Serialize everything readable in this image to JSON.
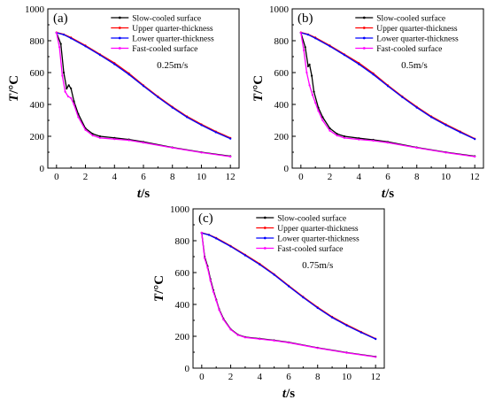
{
  "chart_data": [
    {
      "type": "line",
      "panel_label": "(a)",
      "annotation": "0.25m/s",
      "xlabel": {
        "var": "t",
        "unit": "/s"
      },
      "ylabel": {
        "var": "T",
        "unit": "/°C"
      },
      "xlim": [
        -0.6,
        12.6
      ],
      "ylim": [
        0,
        1000
      ],
      "xticks": [
        0,
        2,
        4,
        6,
        8,
        10,
        12
      ],
      "yticks": [
        0,
        200,
        400,
        600,
        800,
        1000
      ],
      "xtick_labels": [
        "0",
        "2",
        "4",
        "6",
        "8",
        "10",
        "12"
      ],
      "ytick_labels": [
        "0",
        "200",
        "400",
        "600",
        "800",
        "1000"
      ],
      "legend_position": "top-right",
      "series": [
        {
          "name": "Slow-cooled surface",
          "color": "#000000",
          "x": [
            0,
            0.3,
            0.5,
            0.7,
            0.85,
            1.0,
            1.2,
            1.5,
            2,
            2.5,
            3,
            4,
            5,
            6,
            8,
            10,
            12
          ],
          "y": [
            850,
            780,
            600,
            500,
            520,
            500,
            420,
            340,
            250,
            215,
            200,
            190,
            180,
            165,
            130,
            100,
            75
          ]
        },
        {
          "name": "Upper quarter-thickness",
          "color": "#ff0000",
          "x": [
            0,
            0.5,
            1,
            2,
            3,
            4,
            5,
            6,
            7,
            8,
            9,
            10,
            11,
            12
          ],
          "y": [
            852,
            840,
            820,
            770,
            715,
            660,
            595,
            520,
            450,
            385,
            325,
            275,
            230,
            190
          ]
        },
        {
          "name": "Lower quarter-thickness",
          "color": "#0000ff",
          "x": [
            0,
            0.5,
            1,
            2,
            3,
            4,
            5,
            6,
            7,
            8,
            9,
            10,
            11,
            12
          ],
          "y": [
            850,
            838,
            815,
            765,
            710,
            652,
            588,
            515,
            445,
            380,
            320,
            270,
            225,
            185
          ]
        },
        {
          "name": "Fast-cooled surface",
          "color": "#ff00ff",
          "x": [
            0,
            0.2,
            0.4,
            0.6,
            0.8,
            1.0,
            1.2,
            1.5,
            2,
            2.5,
            3,
            4,
            5,
            6,
            8,
            10,
            12
          ],
          "y": [
            850,
            760,
            580,
            480,
            450,
            440,
            400,
            320,
            240,
            205,
            190,
            182,
            175,
            160,
            128,
            98,
            72
          ]
        }
      ]
    },
    {
      "type": "line",
      "panel_label": "(b)",
      "annotation": "0.5m/s",
      "xlabel": {
        "var": "t",
        "unit": "/s"
      },
      "ylabel": {
        "var": "T",
        "unit": "/°C"
      },
      "xlim": [
        -0.6,
        12.6
      ],
      "ylim": [
        0,
        1000
      ],
      "xticks": [
        0,
        2,
        4,
        6,
        8,
        10,
        12
      ],
      "yticks": [
        0,
        200,
        400,
        600,
        800,
        1000
      ],
      "xtick_labels": [
        "0",
        "2",
        "4",
        "6",
        "8",
        "10",
        "12"
      ],
      "ytick_labels": [
        "0",
        "200",
        "400",
        "600",
        "800",
        "1000"
      ],
      "legend_position": "top-right",
      "series": [
        {
          "name": "Slow-cooled surface",
          "color": "#000000",
          "x": [
            0,
            0.3,
            0.5,
            0.6,
            0.75,
            0.9,
            1.2,
            1.5,
            2,
            2.5,
            3,
            4,
            5,
            6,
            8,
            10,
            12
          ],
          "y": [
            850,
            760,
            640,
            650,
            580,
            480,
            380,
            320,
            250,
            215,
            200,
            188,
            178,
            165,
            130,
            100,
            75
          ]
        },
        {
          "name": "Upper quarter-thickness",
          "color": "#ff0000",
          "x": [
            0,
            0.5,
            1,
            2,
            3,
            4,
            5,
            6,
            7,
            8,
            9,
            10,
            11,
            12
          ],
          "y": [
            852,
            840,
            820,
            770,
            715,
            660,
            595,
            520,
            450,
            385,
            325,
            275,
            230,
            185
          ]
        },
        {
          "name": "Lower quarter-thickness",
          "color": "#0000ff",
          "x": [
            0,
            0.5,
            1,
            2,
            3,
            4,
            5,
            6,
            7,
            8,
            9,
            10,
            11,
            12
          ],
          "y": [
            850,
            838,
            815,
            765,
            710,
            652,
            588,
            515,
            445,
            380,
            320,
            270,
            225,
            182
          ]
        },
        {
          "name": "Fast-cooled surface",
          "color": "#ff00ff",
          "x": [
            0,
            0.2,
            0.4,
            0.6,
            0.8,
            1.0,
            1.2,
            1.5,
            2,
            2.5,
            3,
            4,
            5,
            6,
            8,
            10,
            12
          ],
          "y": [
            850,
            740,
            600,
            520,
            460,
            410,
            360,
            300,
            235,
            205,
            190,
            180,
            172,
            160,
            128,
            98,
            72
          ]
        }
      ]
    },
    {
      "type": "line",
      "panel_label": "(c)",
      "annotation": "0.75m/s",
      "xlabel": {
        "var": "t",
        "unit": "/s"
      },
      "ylabel": {
        "var": "T",
        "unit": "/°C"
      },
      "xlim": [
        -0.6,
        12.6
      ],
      "ylim": [
        0,
        1000
      ],
      "xticks": [
        0,
        2,
        4,
        6,
        8,
        10,
        12
      ],
      "yticks": [
        0,
        200,
        400,
        600,
        800,
        1000
      ],
      "xtick_labels": [
        "0",
        "2",
        "4",
        "6",
        "8",
        "10",
        "12"
      ],
      "ytick_labels": [
        "0",
        "200",
        "400",
        "600",
        "800",
        "1000"
      ],
      "legend_position": "top-right",
      "series": [
        {
          "name": "Slow-cooled surface",
          "color": "#000000",
          "x": [
            0,
            0.2,
            0.4,
            0.6,
            0.8,
            1.0,
            1.2,
            1.5,
            2,
            2.5,
            3,
            4,
            5,
            6,
            8,
            10,
            12
          ],
          "y": [
            850,
            700,
            640,
            560,
            490,
            430,
            370,
            310,
            245,
            210,
            195,
            185,
            175,
            162,
            128,
            98,
            72
          ]
        },
        {
          "name": "Upper quarter-thickness",
          "color": "#ff0000",
          "x": [
            0,
            0.5,
            1,
            2,
            3,
            4,
            5,
            6,
            7,
            8,
            9,
            10,
            11,
            12
          ],
          "y": [
            850,
            838,
            818,
            768,
            712,
            655,
            590,
            518,
            448,
            382,
            322,
            272,
            228,
            185
          ]
        },
        {
          "name": "Lower quarter-thickness",
          "color": "#0000ff",
          "x": [
            0,
            0.5,
            1,
            2,
            3,
            4,
            5,
            6,
            7,
            8,
            9,
            10,
            11,
            12
          ],
          "y": [
            848,
            836,
            814,
            764,
            708,
            650,
            586,
            514,
            444,
            378,
            318,
            268,
            224,
            183
          ]
        },
        {
          "name": "Fast-cooled surface",
          "color": "#ff00ff",
          "x": [
            0,
            0.2,
            0.4,
            0.6,
            0.8,
            1.0,
            1.2,
            1.5,
            2,
            2.5,
            3,
            4,
            5,
            6,
            8,
            10,
            12
          ],
          "y": [
            850,
            690,
            630,
            550,
            480,
            425,
            365,
            305,
            242,
            208,
            193,
            183,
            173,
            160,
            126,
            96,
            70
          ]
        }
      ]
    }
  ]
}
